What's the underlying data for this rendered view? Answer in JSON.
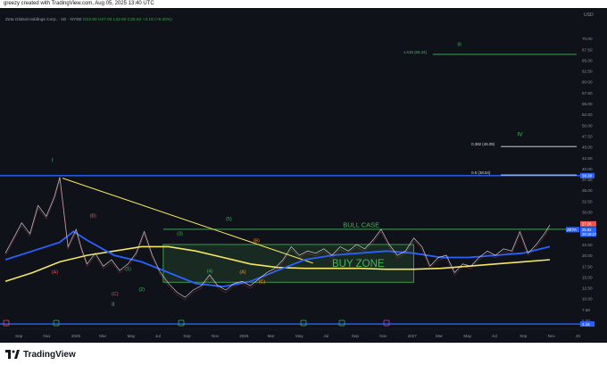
{
  "header": {
    "attribution": "greezy created with TradingView.com, Aug 05, 2025 13:40 UTC"
  },
  "symbol_line": {
    "name": "Zeta Global Holdings Corp. · 1D · NYSE",
    "ohlc": "O22.60 H27.02 L22.60 C25.62 +3.18 (+8.20%)"
  },
  "footer": {
    "brand": "TradingView"
  },
  "colors": {
    "background": "#0f1219",
    "price": "#e8e8ea",
    "ma_blue": "#2962ff",
    "ma_yellow": "#f5e663",
    "wave_green": "#45b85a",
    "wave_red": "#ef5350",
    "wave_orange": "#f0912e",
    "zone_fill": "#1f3a28",
    "horizontal_blue": "#2962ff",
    "trendline": "#f5e663"
  },
  "chart_data": {
    "type": "line",
    "symbol": "ZETA",
    "currency": "USD",
    "ylim": [
      5,
      72.5
    ],
    "y_ticks": [
      "70.00",
      "67.50",
      "65.00",
      "62.50",
      "60.00",
      "57.50",
      "55.00",
      "52.50",
      "50.00",
      "47.50",
      "45.00",
      "42.50",
      "40.00",
      "37.50",
      "35.00",
      "32.50",
      "30.00",
      "27.50",
      "25.00",
      "22.50",
      "20.00",
      "17.50",
      "15.00",
      "12.50",
      "10.00",
      "7.50",
      "5.00"
    ],
    "x_ticks": [
      "Sep",
      "Nov",
      "2025",
      "Mar",
      "May",
      "Jul",
      "Sep",
      "Nov",
      "2026",
      "Mar",
      "May",
      "Jul",
      "Sep",
      "Nov",
      "2027",
      "Mar",
      "May",
      "Jul",
      "Sep",
      "Nov",
      "20"
    ],
    "price_series": {
      "name": "price",
      "x": [
        0,
        3,
        6,
        9,
        12,
        15,
        18,
        20,
        23,
        26,
        28,
        30,
        33,
        36,
        39,
        42,
        45,
        48,
        51,
        54,
        57,
        60,
        63,
        66,
        69,
        72,
        75,
        78,
        81,
        84,
        87,
        90,
        93,
        96,
        99,
        102,
        105,
        108,
        111,
        114,
        117,
        120,
        123,
        126,
        129,
        132,
        135,
        138,
        141,
        144,
        147,
        150,
        153,
        156,
        159,
        162,
        165,
        168,
        171,
        174,
        177,
        180,
        183,
        186,
        189,
        192,
        195,
        198,
        200
      ],
      "values": [
        20.5,
        24.0,
        27.5,
        25.0,
        31.5,
        29.0,
        33.5,
        38.0,
        22.0,
        26.0,
        21.5,
        18.0,
        20.5,
        17.5,
        19.0,
        16.5,
        18.0,
        20.5,
        25.5,
        20.0,
        16.0,
        13.5,
        11.5,
        10.3,
        12.0,
        13.0,
        15.5,
        13.0,
        12.0,
        13.5,
        14.0,
        13.0,
        14.5,
        16.0,
        17.0,
        19.0,
        22.0,
        20.0,
        21.0,
        20.5,
        21.5,
        20.0,
        22.0,
        21.0,
        22.5,
        21.5,
        23.5,
        26.0,
        22.5,
        20.0,
        21.0,
        24.0,
        22.0,
        17.5,
        19.5,
        20.0,
        16.0,
        18.0,
        17.5,
        19.5,
        21.0,
        20.0,
        21.5,
        21.0,
        25.5,
        20.5,
        22.5,
        25.0,
        27.0
      ]
    },
    "ma_blue": {
      "name": "moving average (blue)",
      "x": [
        0,
        10,
        20,
        25,
        30,
        40,
        50,
        60,
        70,
        80,
        90,
        100,
        110,
        120,
        130,
        140,
        150,
        160,
        170,
        180,
        190,
        200
      ],
      "values": [
        19.0,
        21.0,
        23.0,
        25.5,
        23.5,
        20.0,
        18.5,
        16.0,
        13.5,
        12.8,
        14.0,
        16.5,
        19.0,
        20.0,
        20.5,
        21.0,
        20.5,
        19.5,
        19.5,
        20.0,
        20.5,
        22.0
      ]
    },
    "ma_yellow": {
      "name": "moving average (yellow)",
      "x": [
        0,
        10,
        20,
        30,
        40,
        50,
        60,
        70,
        80,
        90,
        100,
        110,
        120,
        130,
        140,
        150,
        160,
        170,
        180,
        190,
        200
      ],
      "values": [
        14.0,
        16.0,
        18.5,
        20.0,
        21.0,
        22.0,
        22.0,
        21.0,
        19.5,
        18.0,
        17.2,
        17.0,
        17.0,
        17.0,
        16.8,
        16.8,
        17.0,
        17.5,
        18.0,
        18.5,
        19.0
      ]
    },
    "horizontal_lines": [
      {
        "value": 38.38,
        "label": "38.38",
        "span": "full"
      },
      {
        "value": 4.16,
        "label": "4.16",
        "span": "full"
      }
    ],
    "fib_lines": [
      {
        "label": "1.618 (66.34)",
        "value": 66.34,
        "x_from": 157
      },
      {
        "label": "0.382 (45.09)",
        "value": 45.09,
        "x_from": 182
      },
      {
        "label": "0.5 (38.54)",
        "value": 38.54,
        "x_from": 182
      }
    ],
    "bull_case": {
      "label": "BULL CASE",
      "value": 26.0
    },
    "buy_zone": {
      "label": "BUY ZONE",
      "top": 22.5,
      "bottom": 13.8,
      "x_from": 58,
      "x_to": 150
    },
    "trendline": {
      "x_from": 21,
      "y_from": 37.8,
      "x_to": 113,
      "y_to": 18.2
    },
    "wave_labels": [
      {
        "text": "I",
        "x": 18,
        "y": 41.5,
        "color": "green"
      },
      {
        "text": "(A)",
        "x": 18,
        "y": 15.8,
        "color": "red"
      },
      {
        "text": "(B)",
        "x": 32,
        "y": 28.8,
        "color": "red"
      },
      {
        "text": "(C)",
        "x": 40,
        "y": 10.8,
        "color": "red"
      },
      {
        "text": "II",
        "x": 40,
        "y": 8.3,
        "color": "green"
      },
      {
        "text": "(1)",
        "x": 45,
        "y": 16.5,
        "color": "green"
      },
      {
        "text": "(2)",
        "x": 50,
        "y": 11.8,
        "color": "green"
      },
      {
        "text": "(3)",
        "x": 64,
        "y": 24.7,
        "color": "green"
      },
      {
        "text": "(4)",
        "x": 75,
        "y": 16.0,
        "color": "green"
      },
      {
        "text": "(5)",
        "x": 82,
        "y": 28.0,
        "color": "green"
      },
      {
        "text": "(B)",
        "x": 92,
        "y": 23.0,
        "color": "orange"
      },
      {
        "text": "(A)",
        "x": 87,
        "y": 15.8,
        "color": "orange"
      },
      {
        "text": "(C)",
        "x": 94,
        "y": 13.5,
        "color": "orange"
      },
      {
        "text": "III",
        "x": 167,
        "y": 68.3,
        "color": "green"
      },
      {
        "text": "IV",
        "x": 189,
        "y": 47.5,
        "color": "green"
      }
    ],
    "price_labels": [
      {
        "text": "ZETA",
        "value": 25.92,
        "color": "#2962ff"
      },
      {
        "text": "25.92",
        "value": 25.92,
        "color": "#2962ff"
      },
      {
        "text": "28:19:27",
        "value": 24.9,
        "color": "#2962ff"
      },
      {
        "text": "27.26",
        "value": 27.26,
        "color": "#ef5350"
      }
    ]
  }
}
